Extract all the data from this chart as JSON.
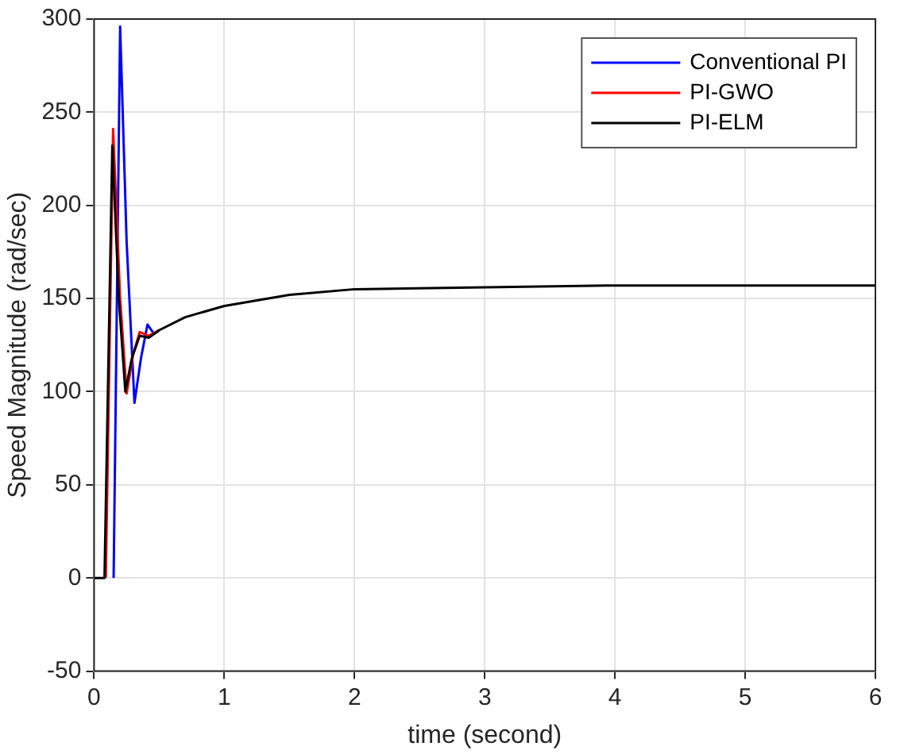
{
  "chart_data": {
    "type": "line",
    "xlabel": "time (second)",
    "ylabel": "Speed Magnitude (rad/sec)",
    "xlim": [
      0,
      6
    ],
    "ylim": [
      -50,
      300
    ],
    "xticks": [
      0,
      1,
      2,
      3,
      4,
      5,
      6
    ],
    "yticks": [
      -50,
      0,
      50,
      100,
      150,
      200,
      250,
      300
    ],
    "grid": true,
    "legend": "top right",
    "marker": "none",
    "line_style": "solid",
    "series": [
      {
        "name": "Conventional PI",
        "color": "#0000ff",
        "x": [
          0.15,
          0.2,
          0.25,
          0.31,
          0.36,
          0.41,
          0.46,
          0.5
        ],
        "values": [
          0,
          296,
          180,
          94,
          118,
          136,
          131,
          133
        ]
      },
      {
        "name": "PI-GWO",
        "color": "#ff0000",
        "x": [
          0.09,
          0.146,
          0.2,
          0.25,
          0.3,
          0.35,
          0.42,
          0.5
        ],
        "values": [
          0,
          241,
          150,
          99,
          120,
          132,
          130,
          133
        ]
      },
      {
        "name": "PI-ELM",
        "color": "#000000",
        "x": [
          0,
          0.08,
          0.14,
          0.19,
          0.24,
          0.29,
          0.35,
          0.42,
          0.5,
          0.7,
          1,
          1.5,
          2,
          3,
          4,
          5,
          6
        ],
        "values": [
          0,
          0,
          232,
          150,
          100,
          118,
          130,
          129,
          133,
          140,
          146,
          152,
          155,
          156,
          157,
          157,
          157
        ]
      }
    ]
  }
}
